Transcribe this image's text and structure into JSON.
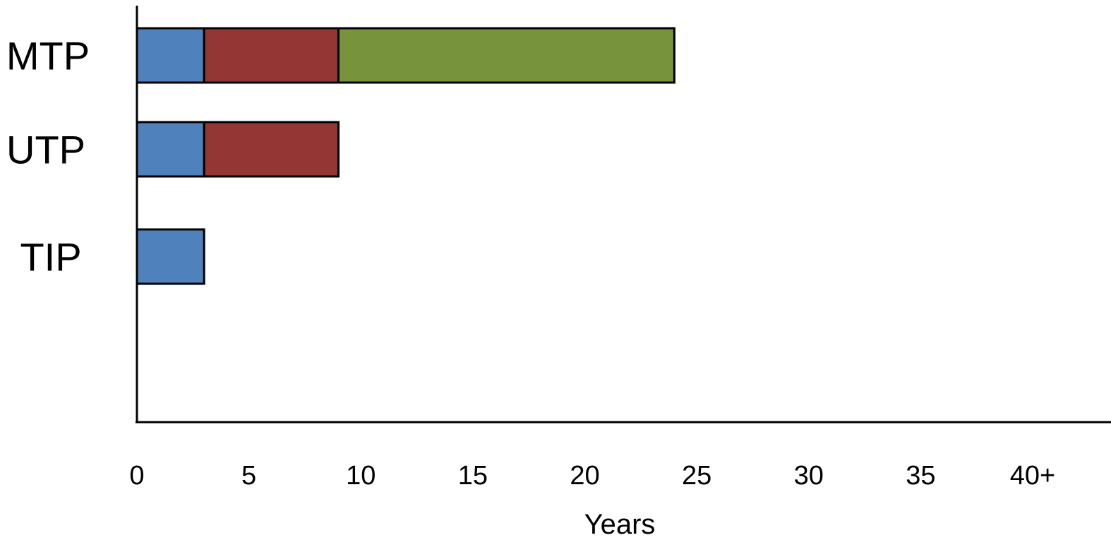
{
  "chart_data": {
    "type": "bar",
    "orientation": "horizontal",
    "stacked": true,
    "categories": [
      "MTP",
      "UTP",
      "TIP"
    ],
    "series": [
      {
        "color": "#4f81bd",
        "values": [
          3,
          3,
          3
        ]
      },
      {
        "color": "#943634",
        "values": [
          6,
          6,
          0
        ]
      },
      {
        "color": "#77933c",
        "values": [
          15,
          0,
          0
        ]
      }
    ],
    "xlabel": "Years",
    "xlim": [
      0,
      43.5
    ],
    "x_ticks": [
      0,
      5,
      10,
      15,
      20,
      25,
      30,
      35,
      40
    ],
    "x_tick_labels": [
      "0",
      "5",
      "10",
      "15",
      "20",
      "25",
      "30",
      "35",
      "40+"
    ],
    "grid": false,
    "legend": "none"
  }
}
